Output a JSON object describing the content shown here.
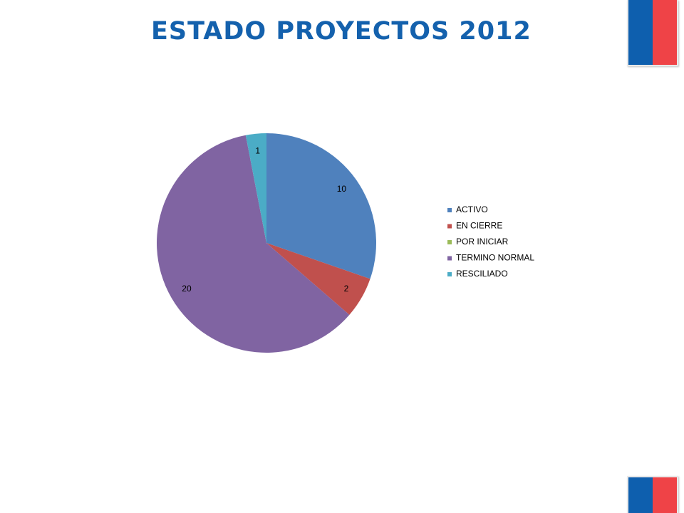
{
  "slide": {
    "title": "ESTADO PROYECTOS 2012",
    "title_color": "#1461ad"
  },
  "flag": {
    "colors": [
      "#0e5fae",
      "#ef4347"
    ]
  },
  "chart_data": {
    "type": "pie",
    "title": "",
    "categories": [
      "ACTIVO",
      "EN CIERRE",
      "POR INICIAR",
      "TERMINO NORMAL",
      "RESCILIADO"
    ],
    "values": [
      10,
      2,
      0,
      20,
      1
    ],
    "data_labels": [
      "10",
      "2",
      "",
      "20",
      "1"
    ],
    "colors": [
      "#4f81bd",
      "#c0504d",
      "#9bbb59",
      "#8064a2",
      "#4bacc6"
    ],
    "start_angle_deg": 0,
    "direction": "clockwise",
    "legend": {
      "position": "right",
      "entries": [
        "ACTIVO",
        "EN CIERRE",
        "POR INICIAR",
        "TERMINO NORMAL",
        "RESCILIADO"
      ]
    }
  }
}
